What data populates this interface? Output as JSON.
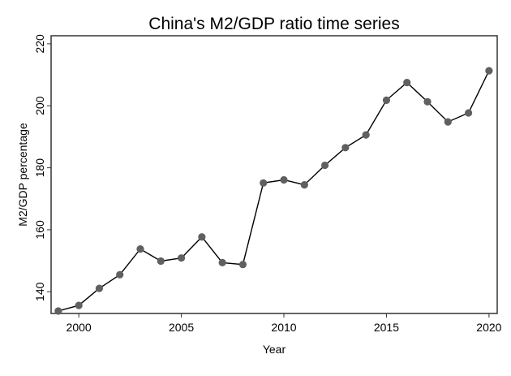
{
  "chart_data": {
    "type": "line",
    "title": "China's M2/GDP ratio time series",
    "xlabel": "Year",
    "ylabel": "M2/GDP percentage",
    "xlim": [
      1998.65,
      2020.4
    ],
    "ylim": [
      133.0,
      222.6
    ],
    "x_ticks": [
      2000,
      2005,
      2010,
      2015,
      2020
    ],
    "y_ticks": [
      140,
      160,
      180,
      200,
      220
    ],
    "grid": false,
    "legend": "none",
    "marker": "circle",
    "line_color": "#000000",
    "marker_color": "#606060",
    "x": [
      1999,
      2000,
      2001,
      2002,
      2003,
      2004,
      2005,
      2006,
      2007,
      2008,
      2009,
      2010,
      2011,
      2012,
      2013,
      2014,
      2015,
      2016,
      2017,
      2018,
      2019,
      2020
    ],
    "y": [
      133.8,
      135.6,
      141.1,
      145.5,
      153.8,
      149.9,
      150.9,
      157.7,
      149.4,
      148.8,
      175.1,
      176.1,
      174.5,
      180.8,
      186.5,
      190.6,
      201.8,
      207.5,
      201.3,
      194.8,
      197.7,
      211.3
    ]
  }
}
